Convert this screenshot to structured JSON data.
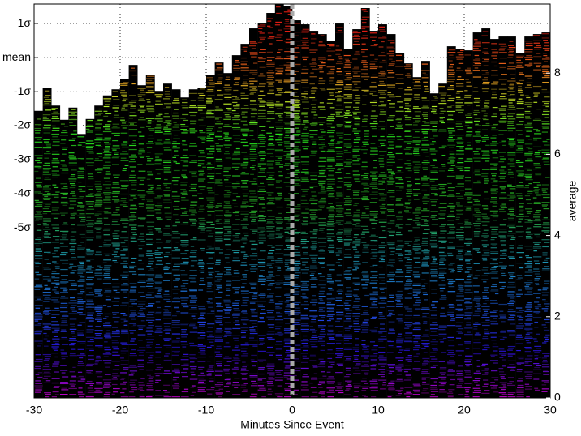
{
  "chart_data": {
    "type": "bar",
    "xlabel": "Minutes Since Event",
    "y2label": "average",
    "x": [
      -30,
      -29,
      -28,
      -27,
      -26,
      -25,
      -24,
      -23,
      -22,
      -21,
      -20,
      -19,
      -18,
      -17,
      -16,
      -15,
      -14,
      -13,
      -12,
      -11,
      -10,
      -9,
      -8,
      -7,
      -6,
      -5,
      -4,
      -3,
      -2,
      -1,
      0,
      1,
      2,
      3,
      4,
      5,
      6,
      7,
      8,
      9,
      10,
      11,
      12,
      13,
      14,
      15,
      16,
      17,
      18,
      19,
      20,
      21,
      22,
      23,
      24,
      25,
      26,
      27,
      28,
      29
    ],
    "series": [
      {
        "color": "#000000",
        "axis": "y2",
        "values": [
          7.07,
          7.64,
          7.2,
          6.85,
          7.15,
          6.5,
          6.87,
          7.2,
          7.45,
          7.6,
          7.85,
          8.2,
          7.7,
          7.96,
          7.56,
          7.74,
          7.6,
          7.4,
          7.6,
          7.64,
          7.96,
          8.26,
          8.0,
          8.44,
          8.72,
          9.1,
          9.24,
          9.48,
          9.7,
          9.64,
          9.3,
          9.2,
          9.04,
          8.96,
          8.8,
          9.24,
          8.6,
          9.08,
          9.6,
          9.04,
          9.2,
          8.96,
          8.5,
          8.24,
          7.9,
          8.3,
          7.5,
          7.74,
          8.66,
          8.6,
          8.56,
          9.0,
          9.1,
          8.84,
          8.9,
          8.9,
          8.5,
          8.9,
          8.96,
          9.0
        ]
      }
    ],
    "xlim": [
      -30,
      30
    ],
    "xticks": [
      -30,
      -20,
      -10,
      0,
      10,
      20,
      30
    ],
    "ylim": [
      0,
      9.7
    ],
    "yticks": [
      {
        "value": 9.22,
        "label": "1σ"
      },
      {
        "value": 8.38,
        "label": "mean"
      },
      {
        "value": 7.54,
        "label": "-1σ"
      },
      {
        "value": 6.71,
        "label": "-2σ"
      },
      {
        "value": 5.87,
        "label": "-3σ"
      },
      {
        "value": 5.03,
        "label": "-4σ"
      },
      {
        "value": 4.19,
        "label": "-5σ"
      }
    ],
    "y2lim": [
      0,
      9.7
    ],
    "y2ticks": [
      0,
      2,
      4,
      6,
      8
    ],
    "grid": true
  }
}
